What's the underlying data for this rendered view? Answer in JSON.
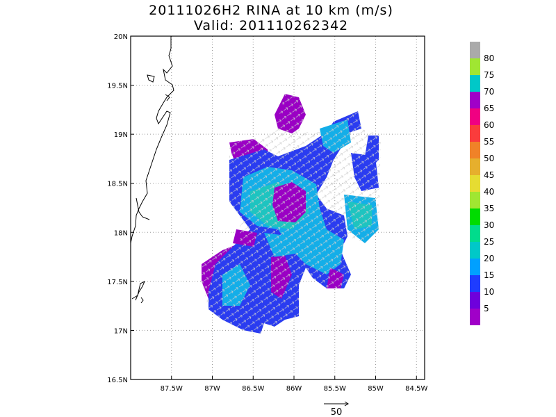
{
  "title": {
    "line1": "20111026H2 RINA at 10 km (m/s)",
    "line2": "Valid: 201110262342"
  },
  "map": {
    "lon_range": [
      -88.0,
      -84.4
    ],
    "lat_range": [
      16.5,
      20.0
    ],
    "lon_ticks": [
      "87.5W",
      "87W",
      "86.5W",
      "86W",
      "85.5W",
      "85W",
      "84.5W"
    ],
    "lat_ticks": [
      "20N",
      "19.5N",
      "19N",
      "18.5N",
      "18N",
      "17.5N",
      "17N",
      "16.5N"
    ],
    "grid": true,
    "grid_style": "dotted"
  },
  "reference_vector": {
    "label": "50",
    "units": "m/s"
  },
  "colorbar": {
    "labels": [
      "5",
      "10",
      "15",
      "20",
      "25",
      "30",
      "35",
      "40",
      "45",
      "50",
      "55",
      "60",
      "65",
      "70",
      "75",
      "80"
    ],
    "colors": [
      "#a000c8",
      "#6e00dc",
      "#1e3cff",
      "#00a0ff",
      "#00c8c8",
      "#00dc8c",
      "#00dc00",
      "#a0e632",
      "#e6dc32",
      "#e6af2d",
      "#f08228",
      "#fa3c3c",
      "#f00082",
      "#a000c8",
      "#00c8c8",
      "#a0e632",
      "#aaaaaa"
    ]
  },
  "colors": {
    "speed_5": "#a000c8",
    "speed_10": "#6e00dc",
    "speed_15": "#1e3cff",
    "speed_20": "#00a0ff",
    "speed_25": "#00c8c8",
    "coastline": "#000000",
    "vectors": "#c8c8c8"
  }
}
